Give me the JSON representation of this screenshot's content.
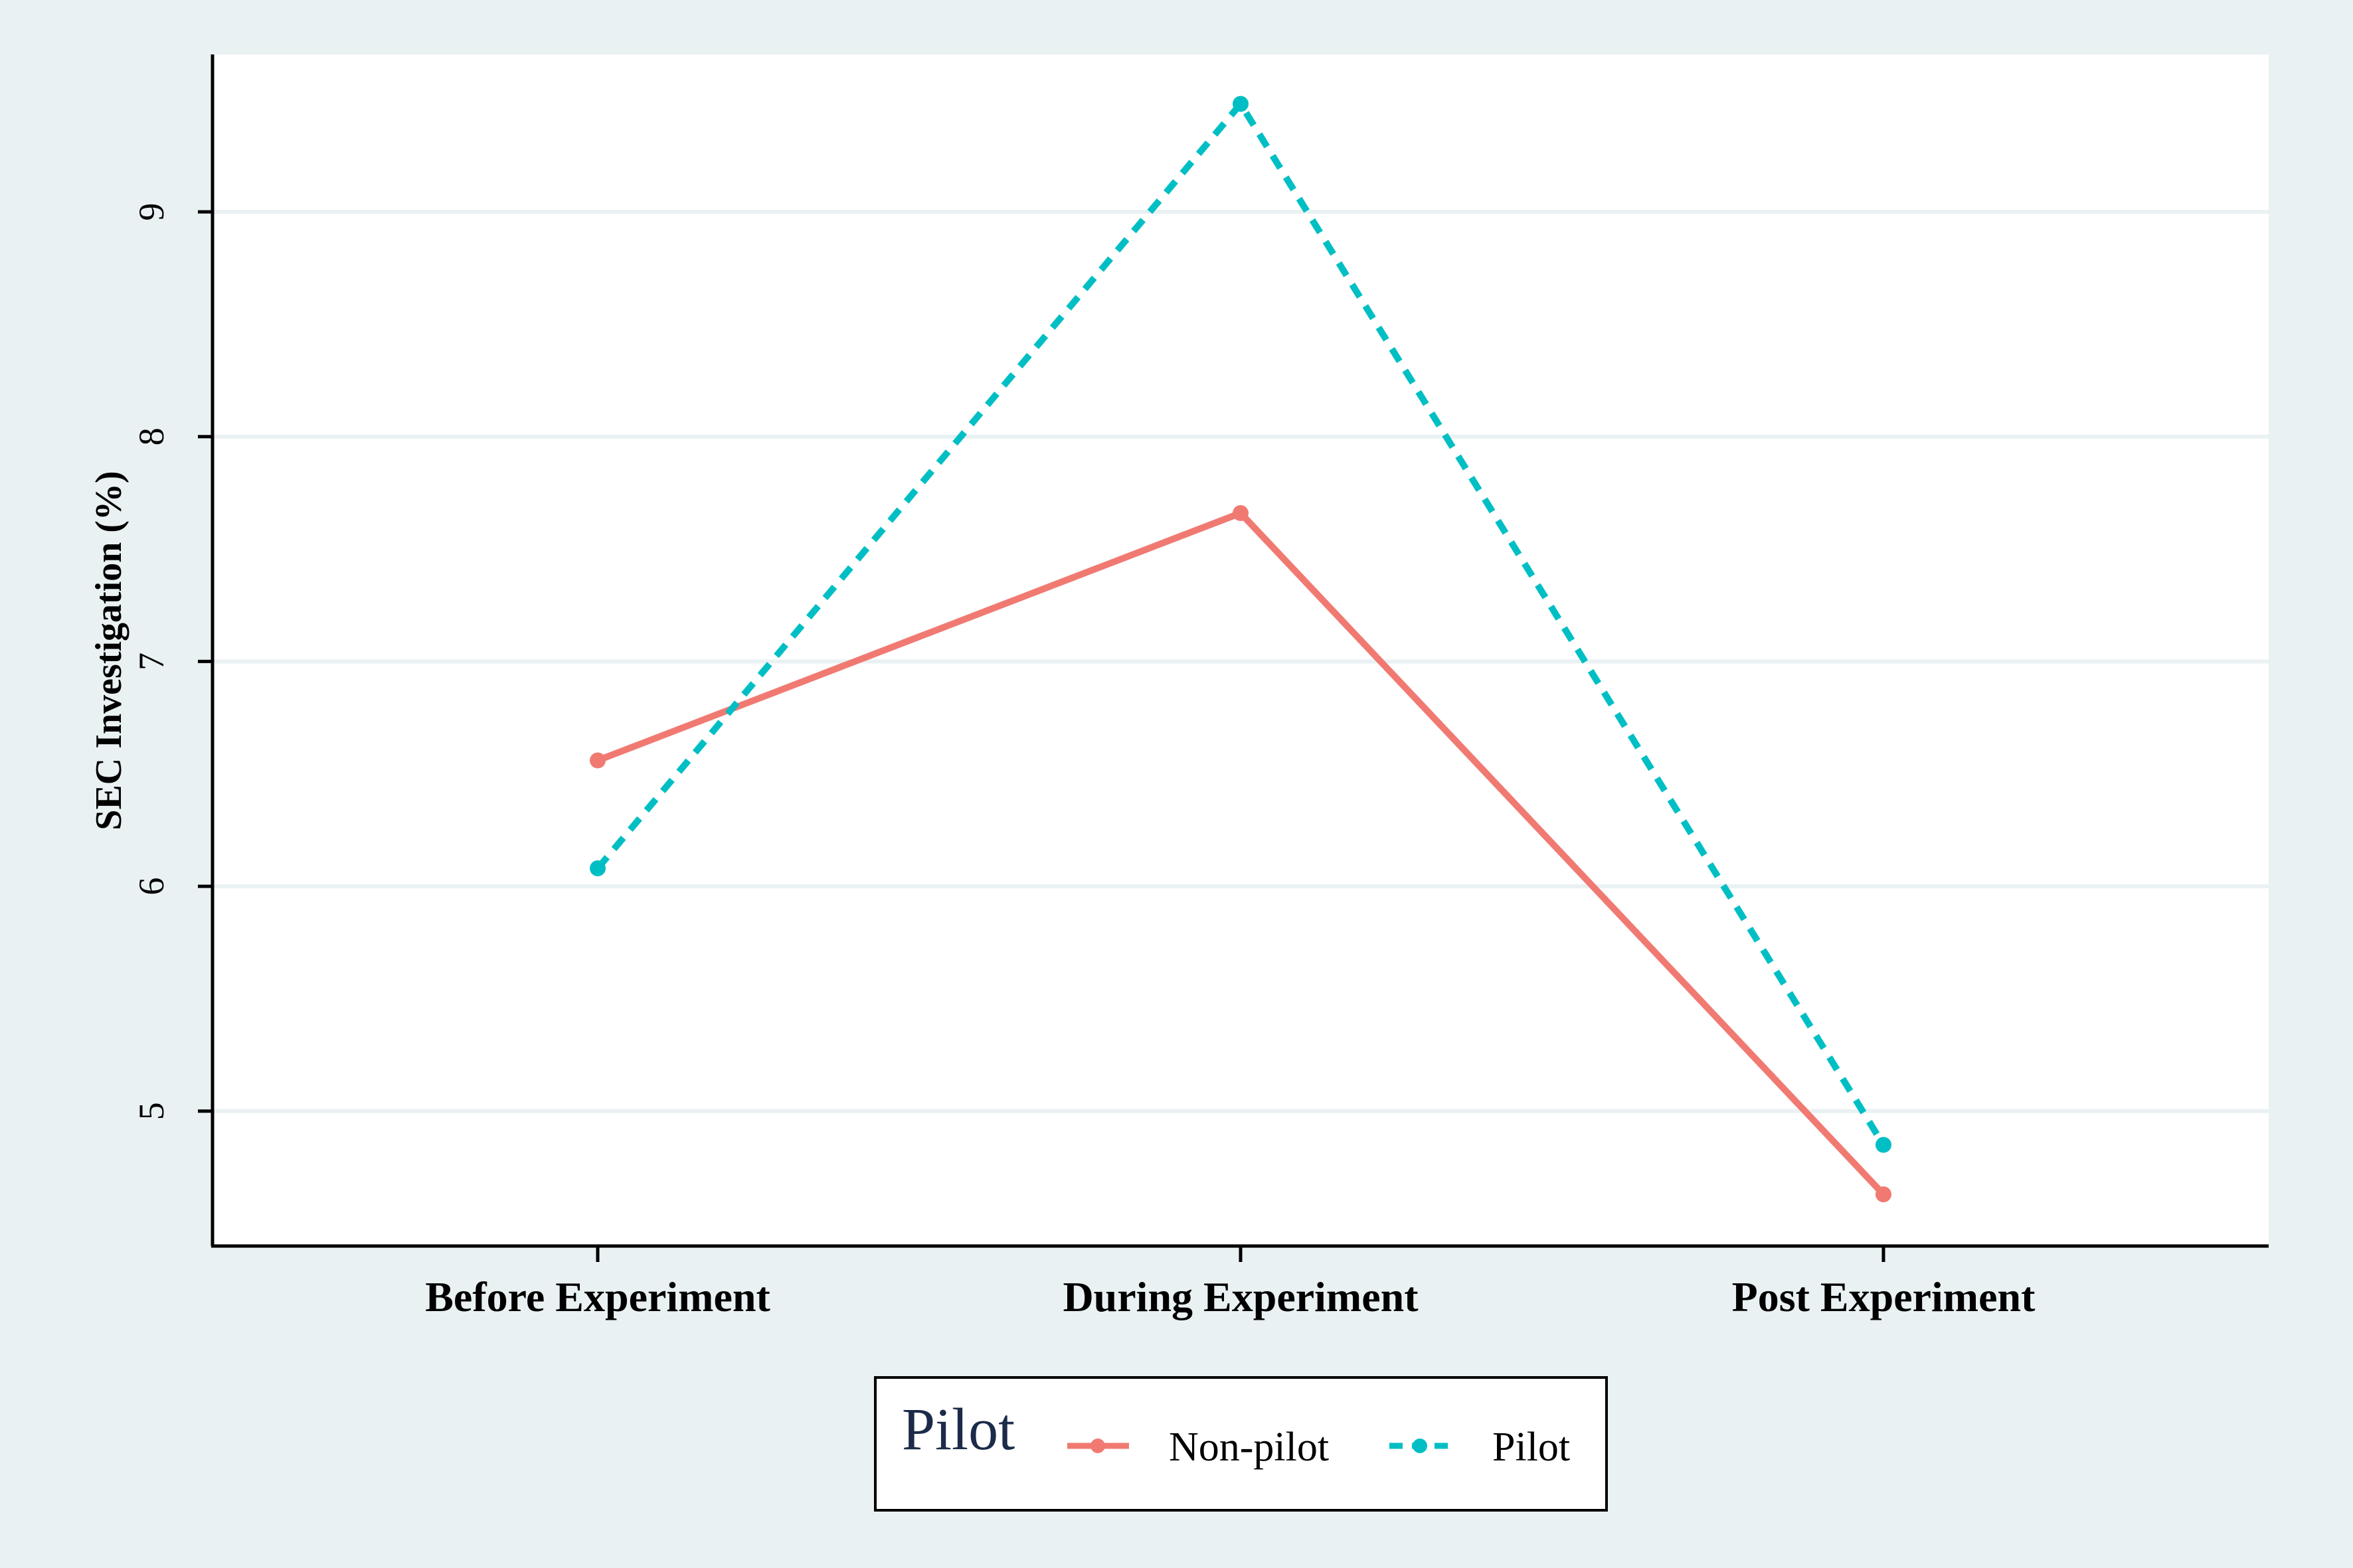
{
  "chart_data": {
    "type": "line",
    "categories": [
      "Before Experiment",
      "During Experiment",
      "Post Experiment"
    ],
    "series": [
      {
        "name": "Non-pilot",
        "values": [
          6.56,
          7.66,
          4.63
        ],
        "color": "#f07a72",
        "style": "solid"
      },
      {
        "name": "Pilot",
        "values": [
          6.08,
          9.48,
          4.85
        ],
        "color": "#00bfc4",
        "style": "dashed"
      }
    ],
    "title": "",
    "xlabel": "",
    "ylabel": "SEC Investigation (%)",
    "ylim": [
      4.4,
      9.7
    ],
    "yticks": [
      "5",
      "6",
      "7",
      "8",
      "9"
    ],
    "grid": true,
    "legend": {
      "title": "Pilot",
      "position": "bottom"
    }
  },
  "colors": {
    "background": "#eaf1f3",
    "plot_background": "#ffffff",
    "gridline": "#eaf1f3",
    "axis": "#000000"
  }
}
